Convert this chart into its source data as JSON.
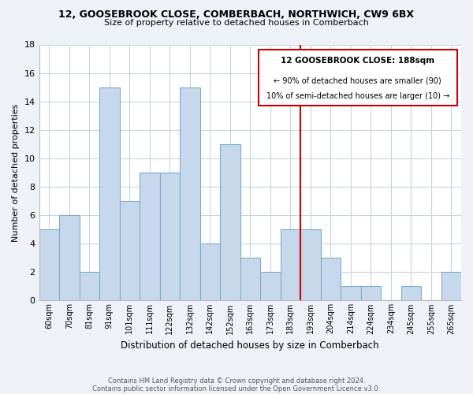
{
  "title1": "12, GOOSEBROOK CLOSE, COMBERBACH, NORTHWICH, CW9 6BX",
  "title2": "Size of property relative to detached houses in Comberbach",
  "xlabel": "Distribution of detached houses by size in Comberbach",
  "ylabel": "Number of detached properties",
  "categories": [
    "60sqm",
    "70sqm",
    "81sqm",
    "91sqm",
    "101sqm",
    "111sqm",
    "122sqm",
    "132sqm",
    "142sqm",
    "152sqm",
    "163sqm",
    "173sqm",
    "183sqm",
    "193sqm",
    "204sqm",
    "214sqm",
    "224sqm",
    "234sqm",
    "245sqm",
    "255sqm",
    "265sqm"
  ],
  "values": [
    5,
    6,
    2,
    15,
    7,
    9,
    9,
    15,
    4,
    11,
    3,
    2,
    5,
    5,
    3,
    1,
    1,
    0,
    1,
    0,
    2
  ],
  "bar_color": "#c8d8ec",
  "bar_edge_color": "#7aaecc",
  "vline_x_index": 13,
  "vline_color": "#cc0000",
  "ylim": [
    0,
    18
  ],
  "yticks": [
    0,
    2,
    4,
    6,
    8,
    10,
    12,
    14,
    16,
    18
  ],
  "annotation_title": "12 GOOSEBROOK CLOSE: 188sqm",
  "annotation_line1": "← 90% of detached houses are smaller (90)",
  "annotation_line2": "10% of semi-detached houses are larger (10) →",
  "annotation_box_color": "#ffffff",
  "annotation_box_edge": "#cc0000",
  "footer1": "Contains HM Land Registry data © Crown copyright and database right 2024.",
  "footer2": "Contains public sector information licensed under the Open Government Licence v3.0.",
  "bg_color": "#eef2f7",
  "plot_bg_color": "#ffffff",
  "grid_color": "#c8d4e0"
}
